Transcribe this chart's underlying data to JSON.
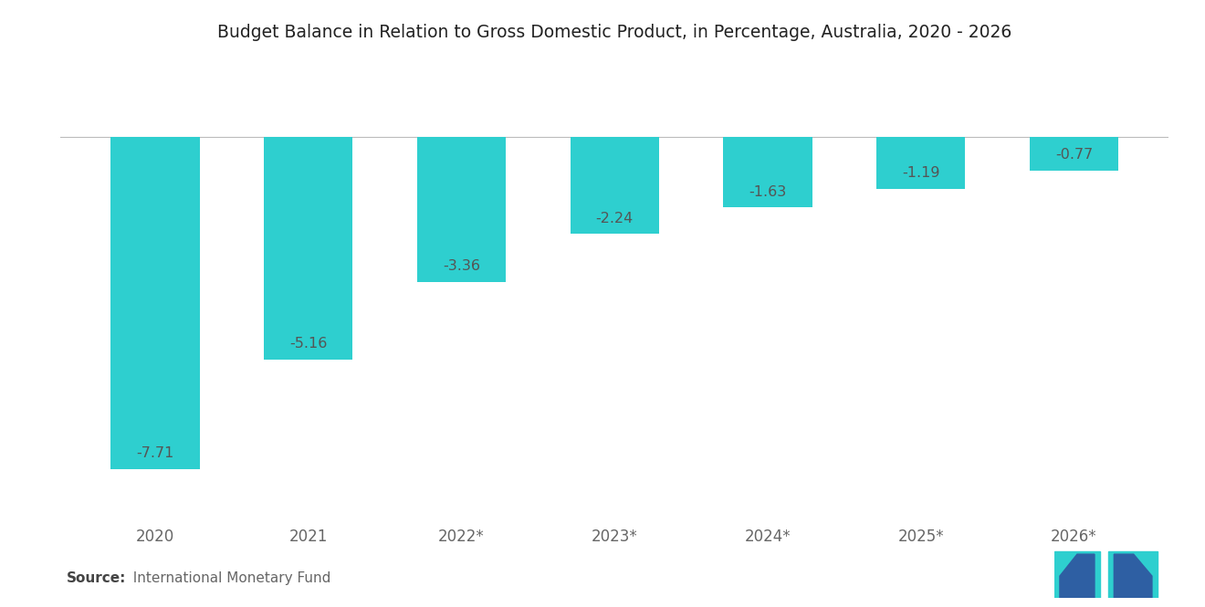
{
  "title": "Budget Balance in Relation to Gross Domestic Product, in Percentage, Australia, 2020 - 2026",
  "categories": [
    "2020",
    "2021",
    "2022*",
    "2023*",
    "2024*",
    "2025*",
    "2026*"
  ],
  "values": [
    -7.71,
    -5.16,
    -3.36,
    -2.24,
    -1.63,
    -1.19,
    -0.77
  ],
  "bar_color": "#2ECFCF",
  "background_color": "#FFFFFF",
  "ylim": [
    -8.8,
    1.5
  ],
  "source_bold": "Source:",
  "source_rest": "  International Monetary Fund",
  "title_fontsize": 13.5,
  "label_fontsize": 11.5,
  "tick_fontsize": 12,
  "source_fontsize": 11,
  "logo_teal": "#2ECFCF",
  "logo_navy": "#2E5FA3"
}
